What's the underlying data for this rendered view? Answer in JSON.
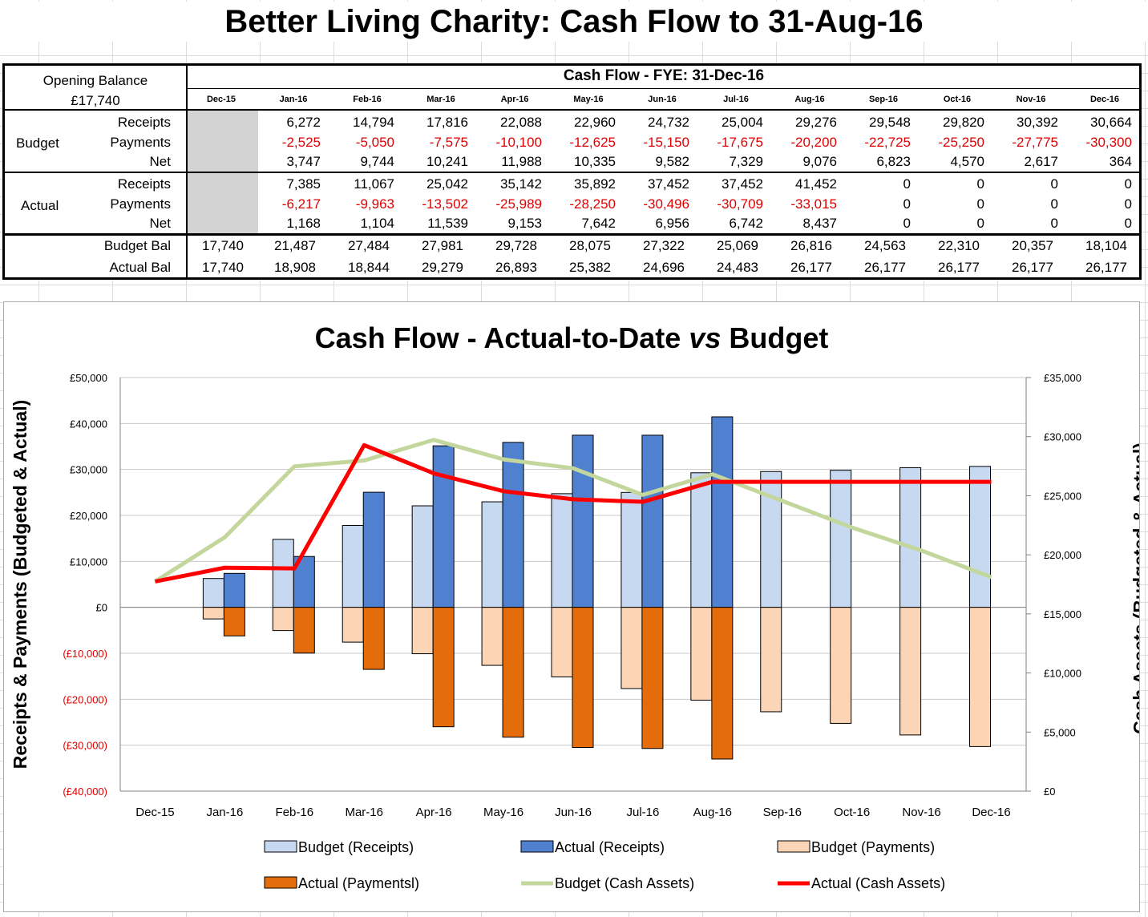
{
  "sheet": {
    "title": "Better Living Charity:  Cash Flow to 31-Aug-16"
  },
  "table": {
    "opening_label": "Opening Balance",
    "opening_value": "£17,740",
    "header": "Cash Flow  -  FYE: 31-Dec-16",
    "months": [
      "Dec-15",
      "Jan-16",
      "Feb-16",
      "Mar-16",
      "Apr-16",
      "May-16",
      "Jun-16",
      "Jul-16",
      "Aug-16",
      "Sep-16",
      "Oct-16",
      "Nov-16",
      "Dec-16"
    ],
    "budget_label": "Budget",
    "actual_label": "Actual",
    "row_labels": [
      "Receipts",
      "Payments",
      "Net"
    ],
    "budget": {
      "receipts": [
        "6,272",
        "14,794",
        "17,816",
        "22,088",
        "22,960",
        "24,732",
        "25,004",
        "29,276",
        "29,548",
        "29,820",
        "30,392",
        "30,664"
      ],
      "payments": [
        "-2,525",
        "-5,050",
        "-7,575",
        "-10,100",
        "-12,625",
        "-15,150",
        "-17,675",
        "-20,200",
        "-22,725",
        "-25,250",
        "-27,775",
        "-30,300"
      ],
      "net": [
        "3,747",
        "9,744",
        "10,241",
        "11,988",
        "10,335",
        "9,582",
        "7,329",
        "9,076",
        "6,823",
        "4,570",
        "2,617",
        "364"
      ]
    },
    "actual": {
      "receipts": [
        "7,385",
        "11,067",
        "25,042",
        "35,142",
        "35,892",
        "37,452",
        "37,452",
        "41,452",
        "0",
        "0",
        "0",
        "0"
      ],
      "payments": [
        "-6,217",
        "-9,963",
        "-13,502",
        "-25,989",
        "-28,250",
        "-30,496",
        "-30,709",
        "-33,015",
        "0",
        "0",
        "0",
        "0"
      ],
      "net": [
        "1,168",
        "1,104",
        "11,539",
        "9,153",
        "7,642",
        "6,956",
        "6,742",
        "8,437",
        "0",
        "0",
        "0",
        "0"
      ]
    },
    "bal_labels": [
      "Budget Bal",
      "Actual Bal"
    ],
    "budget_bal": [
      "17,740",
      "21,487",
      "27,484",
      "27,981",
      "29,728",
      "28,075",
      "27,322",
      "25,069",
      "26,816",
      "24,563",
      "22,310",
      "20,357",
      "18,104"
    ],
    "actual_bal": [
      "17,740",
      "18,908",
      "18,844",
      "29,279",
      "26,893",
      "25,382",
      "24,696",
      "24,483",
      "26,177",
      "26,177",
      "26,177",
      "26,177",
      "26,177"
    ]
  },
  "chart_data": {
    "type": "bar",
    "title": "Cash Flow - Actual-to-Date vs Budget",
    "title_plain": "Cash Flow - Actual-to-Date ",
    "title_italic": "vs",
    "title_end": " Budget",
    "categories": [
      "Dec-15",
      "Jan-16",
      "Feb-16",
      "Mar-16",
      "Apr-16",
      "May-16",
      "Jun-16",
      "Jul-16",
      "Aug-16",
      "Sep-16",
      "Oct-16",
      "Nov-16",
      "Dec-16"
    ],
    "ylabel": "Receipts & Payments (Budgeted & Actual)",
    "y2label": "Cash Assets (Budgeted & Actual)",
    "ylim": [
      -40000,
      50000
    ],
    "y2lim": [
      0,
      35000
    ],
    "yticks": [
      "£50,000",
      "£40,000",
      "£30,000",
      "£20,000",
      "£10,000",
      "£0",
      "(£10,000)",
      "(£20,000)",
      "(£30,000)",
      "(£40,000)"
    ],
    "y2ticks": [
      "£35,000",
      "£30,000",
      "£25,000",
      "£20,000",
      "£15,000",
      "£10,000",
      "£5,000",
      "£0"
    ],
    "series": [
      {
        "name": "Budget (Receipts)",
        "kind": "bar",
        "axis": "left",
        "color": "#c6d9f1",
        "values": [
          null,
          6272,
          14794,
          17816,
          22088,
          22960,
          24732,
          25004,
          29276,
          29548,
          29820,
          30392,
          30664
        ]
      },
      {
        "name": "Actual (Receipts)",
        "kind": "bar",
        "axis": "left",
        "color": "#4f81d0",
        "values": [
          null,
          7385,
          11067,
          25042,
          35142,
          35892,
          37452,
          37452,
          41452,
          0,
          0,
          0,
          0
        ]
      },
      {
        "name": "Budget (Payments)",
        "kind": "bar",
        "axis": "left",
        "color": "#fbd5b5",
        "values": [
          null,
          -2525,
          -5050,
          -7575,
          -10100,
          -12625,
          -15150,
          -17675,
          -20200,
          -22725,
          -25250,
          -27775,
          -30300
        ]
      },
      {
        "name": "Actual (Paymentsl)",
        "kind": "bar",
        "axis": "left",
        "color": "#e46c0a",
        "values": [
          null,
          -6217,
          -9963,
          -13502,
          -25989,
          -28250,
          -30496,
          -30709,
          -33015,
          0,
          0,
          0,
          0
        ]
      },
      {
        "name": "Budget (Cash Assets)",
        "kind": "line",
        "axis": "right",
        "color": "#c3d69b",
        "values": [
          17740,
          21487,
          27484,
          27981,
          29728,
          28075,
          27322,
          25069,
          26816,
          24563,
          22310,
          20357,
          18104
        ]
      },
      {
        "name": "Actual (Cash Assets)",
        "kind": "line",
        "axis": "right",
        "color": "#ff0000",
        "values": [
          17740,
          18908,
          18844,
          29279,
          26893,
          25382,
          24696,
          24483,
          26177,
          26177,
          26177,
          26177,
          26177
        ]
      }
    ],
    "grid": true,
    "legend": "bottom"
  }
}
